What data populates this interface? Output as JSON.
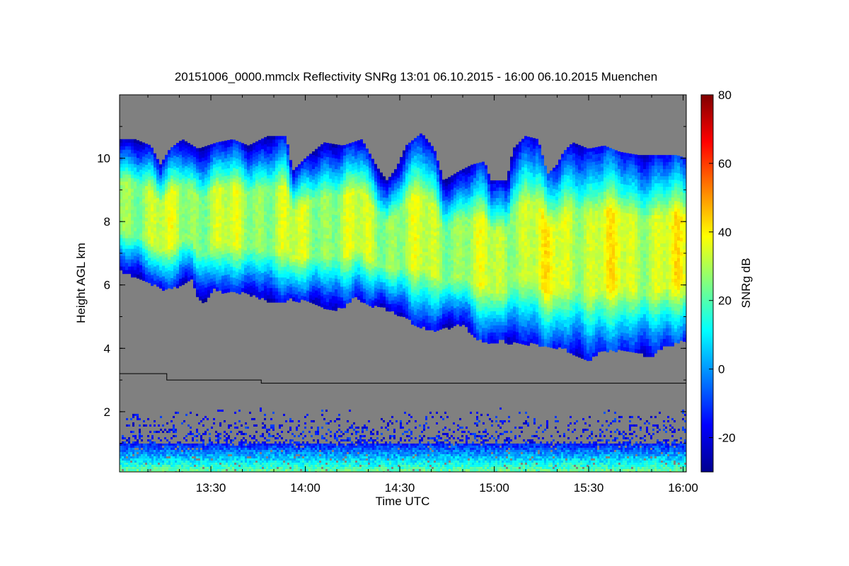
{
  "chart_data": {
    "type": "heatmap",
    "title": "20151006_0000.mmclx Reflectivity SNRg   13:01 06.10.2015 - 16:00 06.10.2015 Muenchen",
    "xlabel": "Time UTC",
    "ylabel": "Height AGL km",
    "colorbar_label": "SNRg dB",
    "x_range_minutes_utc": [
      781,
      961
    ],
    "y_range_km": [
      0.1,
      12.0
    ],
    "x_ticks": [
      {
        "label": "13:30",
        "minute": 810
      },
      {
        "label": "14:00",
        "minute": 840
      },
      {
        "label": "14:30",
        "minute": 870
      },
      {
        "label": "15:00",
        "minute": 900
      },
      {
        "label": "15:30",
        "minute": 930
      },
      {
        "label": "16:00",
        "minute": 960
      }
    ],
    "y_ticks": [
      {
        "label": "2",
        "value": 2
      },
      {
        "label": "4",
        "value": 4
      },
      {
        "label": "6",
        "value": 6
      },
      {
        "label": "8",
        "value": 8
      },
      {
        "label": "10",
        "value": 10
      }
    ],
    "colorbar_range_db": [
      -30,
      80
    ],
    "colorbar_ticks": [
      {
        "label": "-20",
        "value": -20
      },
      {
        "label": "0",
        "value": 0
      },
      {
        "label": "20",
        "value": 20
      },
      {
        "label": "40",
        "value": 40
      },
      {
        "label": "60",
        "value": 60
      },
      {
        "label": "80",
        "value": 80
      }
    ],
    "no_signal_color": "#808080",
    "colormap": [
      "#00008f",
      "#0000ff",
      "#0080ff",
      "#00ffff",
      "#80ff80",
      "#ffff00",
      "#ff8000",
      "#ff0000",
      "#800000"
    ],
    "cloud_layer": {
      "top_km": [
        [
          781,
          10.6
        ],
        [
          786,
          10.6
        ],
        [
          791,
          10.4
        ],
        [
          794,
          9.8
        ],
        [
          797,
          10.3
        ],
        [
          801,
          10.6
        ],
        [
          806,
          10.3
        ],
        [
          812,
          10.5
        ],
        [
          817,
          10.6
        ],
        [
          822,
          10.4
        ],
        [
          828,
          10.7
        ],
        [
          834,
          10.7
        ],
        [
          836,
          9.6
        ],
        [
          840,
          10.0
        ],
        [
          846,
          10.5
        ],
        [
          852,
          10.4
        ],
        [
          858,
          10.6
        ],
        [
          863,
          9.7
        ],
        [
          866,
          9.3
        ],
        [
          869,
          9.7
        ],
        [
          872,
          10.4
        ],
        [
          877,
          10.8
        ],
        [
          881,
          10.3
        ],
        [
          884,
          9.3
        ],
        [
          889,
          9.6
        ],
        [
          893,
          9.8
        ],
        [
          897,
          9.9
        ],
        [
          899,
          9.3
        ],
        [
          904,
          9.3
        ],
        [
          906,
          10.3
        ],
        [
          910,
          10.7
        ],
        [
          914,
          10.6
        ],
        [
          917,
          9.5
        ],
        [
          920,
          9.8
        ],
        [
          922,
          10.2
        ],
        [
          925,
          10.5
        ],
        [
          930,
          10.3
        ],
        [
          935,
          10.4
        ],
        [
          940,
          10.2
        ],
        [
          946,
          10.1
        ],
        [
          952,
          10.1
        ],
        [
          958,
          10.1
        ],
        [
          961,
          10.0
        ]
      ],
      "base_km": [
        [
          781,
          6.5
        ],
        [
          786,
          6.3
        ],
        [
          791,
          6.1
        ],
        [
          795,
          5.9
        ],
        [
          800,
          6.0
        ],
        [
          804,
          6.2
        ],
        [
          806,
          5.6
        ],
        [
          808,
          5.5
        ],
        [
          811,
          5.9
        ],
        [
          815,
          5.8
        ],
        [
          820,
          5.8
        ],
        [
          824,
          5.7
        ],
        [
          830,
          5.5
        ],
        [
          836,
          5.6
        ],
        [
          842,
          5.5
        ],
        [
          847,
          5.3
        ],
        [
          852,
          5.3
        ],
        [
          856,
          5.7
        ],
        [
          860,
          5.4
        ],
        [
          865,
          5.3
        ],
        [
          870,
          5.1
        ],
        [
          875,
          4.8
        ],
        [
          880,
          4.6
        ],
        [
          885,
          4.7
        ],
        [
          890,
          4.8
        ],
        [
          894,
          4.4
        ],
        [
          898,
          4.2
        ],
        [
          902,
          4.3
        ],
        [
          906,
          4.2
        ],
        [
          912,
          4.2
        ],
        [
          918,
          4.1
        ],
        [
          923,
          4.0
        ],
        [
          927,
          3.8
        ],
        [
          930,
          3.6
        ],
        [
          933,
          3.9
        ],
        [
          938,
          4.0
        ],
        [
          944,
          3.9
        ],
        [
          950,
          3.8
        ],
        [
          954,
          4.1
        ],
        [
          958,
          4.2
        ],
        [
          961,
          4.3
        ]
      ],
      "typical_snr_db": [
        -20,
        30
      ]
    },
    "reference_line_km": [
      [
        781,
        3.2
      ],
      [
        796,
        3.2
      ],
      [
        796,
        3.0
      ],
      [
        826,
        3.0
      ],
      [
        826,
        2.9
      ],
      [
        961,
        2.9
      ]
    ],
    "low_level_echo": {
      "dense_top_km": 1.0,
      "sparse_top_km": 2.2,
      "typical_snr_db": [
        -25,
        25
      ]
    }
  }
}
